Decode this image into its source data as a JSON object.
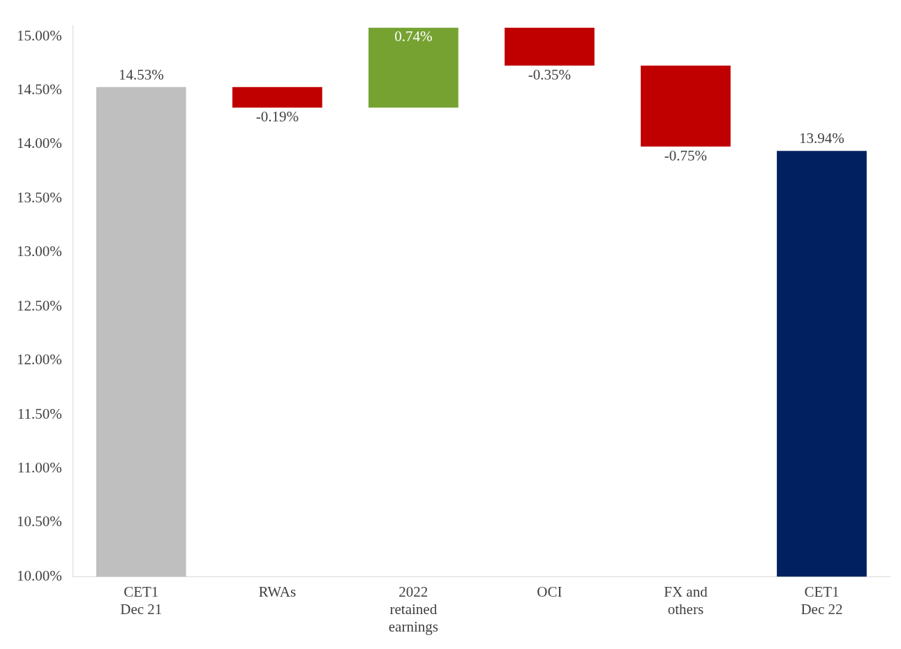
{
  "chart_data": {
    "type": "bar",
    "categories": [
      "CET1 Dec 21",
      "RWAs",
      "2022 retained earnings",
      "OCI",
      "FX and others",
      "CET1 Dec 22"
    ],
    "values": [
      14.53,
      -0.19,
      0.74,
      -0.35,
      -0.75,
      13.94
    ],
    "base": [
      null,
      14.53,
      14.34,
      15.08,
      14.73,
      null
    ],
    "colors": [
      "#bfbfbf",
      "#c00000",
      "#76a232",
      "#c00000",
      "#c00000",
      "#002060"
    ],
    "value_labels": [
      "14.53%",
      "-0.19%",
      "0.74%",
      "-0.35%",
      "-0.75%",
      "13.94%"
    ],
    "ylim": [
      10,
      15.1
    ],
    "yticks": [
      {
        "value": 10,
        "label": "10.00%"
      },
      {
        "value": 10.5,
        "label": "10.50%"
      },
      {
        "value": 11,
        "label": "11.00%"
      },
      {
        "value": 11.5,
        "label": "11.50%"
      },
      {
        "value": 12,
        "label": "12.00%"
      },
      {
        "value": 12.5,
        "label": "12.50%"
      },
      {
        "value": 13,
        "label": "13.00%"
      },
      {
        "value": 13.5,
        "label": "13.50%"
      },
      {
        "value": 14,
        "label": "14.00%"
      },
      {
        "value": 14.5,
        "label": "14.50%"
      },
      {
        "value": 15,
        "label": "15.00%"
      }
    ],
    "grid": false,
    "legend": false
  }
}
